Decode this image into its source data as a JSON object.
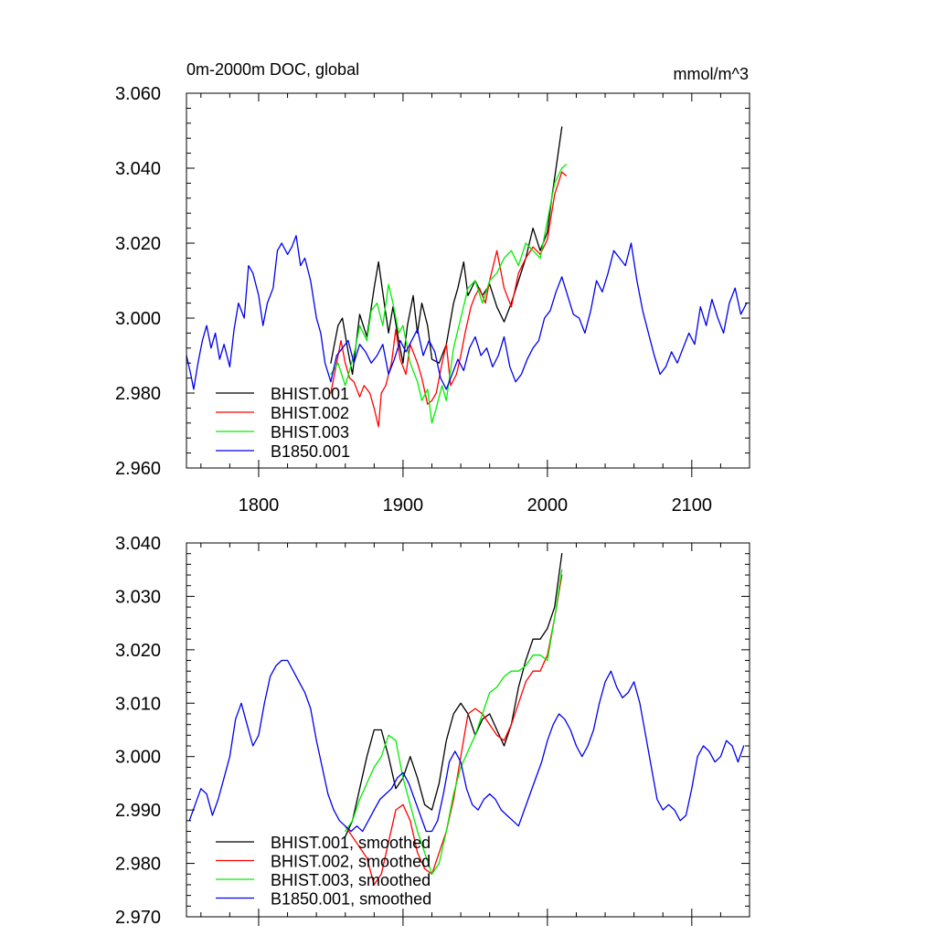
{
  "colors": {
    "BHIST.001": "#000000",
    "BHIST.002": "#ff0000",
    "BHIST.003": "#00ee00",
    "B1850.001": "#0000ee"
  },
  "chart_data": [
    {
      "type": "line",
      "title": "0m-2000m DOC, global",
      "units": "mmol/m^3",
      "xlabel": "",
      "ylabel": "",
      "xlim": [
        1750,
        2140
      ],
      "ylim": [
        2.96,
        3.06
      ],
      "xticks": [
        1800,
        1900,
        2000,
        2100
      ],
      "xtick_labels": [
        "1800",
        "1900",
        "2000",
        "2100"
      ],
      "yticks": [
        2.96,
        2.98,
        3.0,
        3.02,
        3.04,
        3.06
      ],
      "ytick_labels": [
        "2.960",
        "2.980",
        "3.000",
        "3.020",
        "3.040",
        "3.060"
      ],
      "legend_position": "lower-left",
      "grid": false,
      "series": [
        {
          "name": "BHIST.001",
          "x": [
            1850,
            1855,
            1858,
            1862,
            1865,
            1870,
            1875,
            1880,
            1883,
            1887,
            1890,
            1893,
            1897,
            1900,
            1903,
            1907,
            1910,
            1913,
            1917,
            1920,
            1925,
            1930,
            1935,
            1938,
            1942,
            1945,
            1950,
            1955,
            1960,
            1965,
            1970,
            1975,
            1980,
            1985,
            1990,
            1995,
            2000,
            2003,
            2006,
            2010
          ],
          "values": [
            2.988,
            2.998,
            3.0,
            2.991,
            2.985,
            3.001,
            2.995,
            3.008,
            3.015,
            3.004,
            2.996,
            3.003,
            2.994,
            2.988,
            2.998,
            3.006,
            2.996,
            3.004,
            2.998,
            2.989,
            2.988,
            2.993,
            3.004,
            3.008,
            3.015,
            3.006,
            3.01,
            3.006,
            3.009,
            3.003,
            2.999,
            3.004,
            3.01,
            3.016,
            3.024,
            3.018,
            3.023,
            3.032,
            3.04,
            3.051
          ]
        },
        {
          "name": "BHIST.002",
          "x": [
            1850,
            1853,
            1857,
            1860,
            1863,
            1866,
            1870,
            1873,
            1877,
            1880,
            1883,
            1885,
            1888,
            1892,
            1895,
            1898,
            1902,
            1905,
            1910,
            1913,
            1917,
            1920,
            1923,
            1927,
            1930,
            1933,
            1937,
            1940,
            1943,
            1947,
            1950,
            1953,
            1957,
            1960,
            1965,
            1970,
            1975,
            1980,
            1985,
            1990,
            1995,
            2000,
            2005,
            2010,
            2013
          ],
          "values": [
            2.98,
            2.986,
            2.994,
            2.988,
            2.984,
            2.983,
            2.979,
            2.982,
            2.98,
            2.976,
            2.971,
            2.98,
            2.982,
            2.988,
            2.997,
            2.989,
            2.985,
            2.993,
            2.988,
            2.984,
            2.977,
            2.978,
            2.98,
            2.988,
            2.993,
            2.982,
            2.985,
            2.99,
            2.996,
            3.003,
            3.006,
            3.008,
            3.004,
            3.01,
            3.018,
            3.008,
            3.003,
            3.012,
            3.016,
            3.019,
            3.017,
            3.021,
            3.033,
            3.039,
            3.038
          ]
        },
        {
          "name": "BHIST.003",
          "x": [
            1850,
            1855,
            1860,
            1863,
            1867,
            1870,
            1875,
            1878,
            1882,
            1886,
            1890,
            1893,
            1897,
            1900,
            1905,
            1910,
            1913,
            1917,
            1920,
            1923,
            1927,
            1930,
            1935,
            1940,
            1945,
            1950,
            1955,
            1960,
            1965,
            1970,
            1975,
            1980,
            1985,
            1990,
            1995,
            2000,
            2005,
            2010,
            2013
          ],
          "values": [
            2.985,
            2.988,
            2.982,
            2.986,
            2.992,
            2.998,
            2.994,
            3.002,
            3.004,
            2.998,
            3.009,
            3.004,
            2.996,
            2.998,
            2.988,
            2.983,
            2.978,
            2.981,
            2.972,
            2.976,
            2.982,
            2.978,
            2.992,
            3.0,
            3.008,
            3.01,
            3.004,
            3.01,
            3.012,
            3.016,
            3.018,
            3.014,
            3.02,
            3.018,
            3.016,
            3.026,
            3.036,
            3.04,
            3.041
          ]
        },
        {
          "name": "B1850.001",
          "x": [
            1750,
            1753,
            1755,
            1758,
            1761,
            1764,
            1767,
            1770,
            1773,
            1776,
            1780,
            1783,
            1786,
            1790,
            1793,
            1796,
            1800,
            1803,
            1806,
            1810,
            1813,
            1816,
            1820,
            1823,
            1826,
            1829,
            1832,
            1836,
            1840,
            1843,
            1846,
            1850,
            1854,
            1858,
            1862,
            1866,
            1870,
            1874,
            1878,
            1882,
            1886,
            1890,
            1894,
            1898,
            1902,
            1906,
            1910,
            1914,
            1918,
            1922,
            1926,
            1930,
            1934,
            1938,
            1942,
            1946,
            1950,
            1954,
            1958,
            1962,
            1966,
            1970,
            1974,
            1978,
            1982,
            1986,
            1990,
            1994,
            1998,
            2002,
            2006,
            2010,
            2014,
            2018,
            2022,
            2026,
            2030,
            2034,
            2038,
            2042,
            2046,
            2050,
            2054,
            2058,
            2062,
            2066,
            2070,
            2074,
            2078,
            2082,
            2086,
            2090,
            2094,
            2098,
            2102,
            2106,
            2110,
            2114,
            2118,
            2122,
            2126,
            2130,
            2134,
            2138
          ],
          "values": [
            2.99,
            2.985,
            2.981,
            2.988,
            2.994,
            2.998,
            2.992,
            2.996,
            2.989,
            2.993,
            2.987,
            2.997,
            3.004,
            3.0,
            3.014,
            3.012,
            3.006,
            2.998,
            3.004,
            3.008,
            3.018,
            3.02,
            3.017,
            3.019,
            3.022,
            3.014,
            3.016,
            3.01,
            3.0,
            2.996,
            2.988,
            2.983,
            2.99,
            2.992,
            2.994,
            2.988,
            2.993,
            2.991,
            2.988,
            2.99,
            2.993,
            2.985,
            2.989,
            2.994,
            2.991,
            2.994,
            2.997,
            2.99,
            2.994,
            2.991,
            2.984,
            2.981,
            2.985,
            2.989,
            2.986,
            2.992,
            2.995,
            2.99,
            2.992,
            2.987,
            2.99,
            2.995,
            2.987,
            2.983,
            2.985,
            2.989,
            2.992,
            2.994,
            3.0,
            3.002,
            3.007,
            3.011,
            3.006,
            3.001,
            3.0,
            2.996,
            3.002,
            3.01,
            3.007,
            3.012,
            3.018,
            3.016,
            3.014,
            3.02,
            3.01,
            3.002,
            2.996,
            2.99,
            2.985,
            2.987,
            2.991,
            2.988,
            2.992,
            2.996,
            2.993,
            3.003,
            2.998,
            3.005,
            3.0,
            2.996,
            3.004,
            3.008,
            3.001,
            3.004
          ]
        }
      ]
    },
    {
      "type": "line",
      "title": "",
      "xlabel": "",
      "ylabel": "",
      "xlim": [
        1750,
        2140
      ],
      "ylim": [
        2.97,
        3.04
      ],
      "xticks": [
        1800,
        1900,
        2000,
        2100
      ],
      "yticks": [
        2.97,
        2.98,
        2.99,
        3.0,
        3.01,
        3.02,
        3.03,
        3.04
      ],
      "ytick_labels": [
        "2.970",
        "2.980",
        "2.990",
        "3.000",
        "3.010",
        "3.020",
        "3.030",
        "3.040"
      ],
      "legend_position": "lower-left",
      "grid": false,
      "series": [
        {
          "name": "BHIST.001, smoothed",
          "x": [
            1860,
            1865,
            1870,
            1875,
            1880,
            1885,
            1890,
            1895,
            1900,
            1905,
            1910,
            1915,
            1920,
            1925,
            1930,
            1935,
            1940,
            1945,
            1950,
            1955,
            1960,
            1965,
            1970,
            1975,
            1980,
            1985,
            1990,
            1995,
            2000,
            2005,
            2010
          ],
          "values": [
            2.985,
            2.988,
            2.994,
            3.0,
            3.005,
            3.005,
            3.0,
            2.994,
            2.996,
            3.0,
            2.996,
            2.991,
            2.99,
            2.995,
            3.003,
            3.008,
            3.01,
            3.008,
            3.004,
            3.007,
            3.008,
            3.005,
            3.002,
            3.006,
            3.013,
            3.018,
            3.022,
            3.022,
            3.024,
            3.028,
            3.038
          ]
        },
        {
          "name": "BHIST.002, smoothed",
          "x": [
            1860,
            1865,
            1870,
            1875,
            1880,
            1885,
            1890,
            1895,
            1900,
            1905,
            1910,
            1915,
            1920,
            1925,
            1930,
            1935,
            1940,
            1945,
            1950,
            1955,
            1960,
            1965,
            1970,
            1975,
            1980,
            1985,
            1990,
            1995,
            2000,
            2005,
            2010
          ],
          "values": [
            2.987,
            2.985,
            2.983,
            2.981,
            2.976,
            2.978,
            2.984,
            2.99,
            2.991,
            2.988,
            2.982,
            2.979,
            2.978,
            2.982,
            2.986,
            2.992,
            3.0,
            3.008,
            3.009,
            3.008,
            3.006,
            3.004,
            3.003,
            3.006,
            3.01,
            3.014,
            3.016,
            3.016,
            3.019,
            3.026,
            3.034
          ]
        },
        {
          "name": "BHIST.003, smoothed",
          "x": [
            1860,
            1865,
            1870,
            1875,
            1880,
            1885,
            1890,
            1895,
            1900,
            1905,
            1910,
            1915,
            1920,
            1925,
            1930,
            1935,
            1940,
            1945,
            1950,
            1955,
            1960,
            1965,
            1970,
            1975,
            1980,
            1985,
            1990,
            1995,
            2000,
            2005,
            2010
          ],
          "values": [
            2.986,
            2.988,
            2.992,
            2.995,
            2.998,
            3.0,
            3.004,
            3.003,
            2.996,
            2.991,
            2.986,
            2.982,
            2.978,
            2.98,
            2.986,
            2.993,
            2.998,
            3.001,
            3.004,
            3.008,
            3.012,
            3.013,
            3.015,
            3.016,
            3.016,
            3.017,
            3.019,
            3.019,
            3.018,
            3.026,
            3.035
          ]
        },
        {
          "name": "B1850.001, smoothed",
          "x": [
            1752,
            1756,
            1760,
            1764,
            1768,
            1772,
            1776,
            1780,
            1784,
            1788,
            1792,
            1796,
            1800,
            1804,
            1808,
            1812,
            1816,
            1820,
            1824,
            1828,
            1832,
            1836,
            1840,
            1844,
            1848,
            1852,
            1856,
            1860,
            1864,
            1868,
            1872,
            1876,
            1880,
            1884,
            1888,
            1892,
            1896,
            1900,
            1904,
            1908,
            1912,
            1916,
            1920,
            1924,
            1928,
            1932,
            1936,
            1940,
            1944,
            1948,
            1952,
            1956,
            1960,
            1964,
            1968,
            1972,
            1976,
            1980,
            1984,
            1988,
            1992,
            1996,
            2000,
            2004,
            2008,
            2012,
            2016,
            2020,
            2024,
            2028,
            2032,
            2036,
            2040,
            2044,
            2048,
            2052,
            2056,
            2060,
            2064,
            2068,
            2072,
            2076,
            2080,
            2084,
            2088,
            2092,
            2096,
            2100,
            2104,
            2108,
            2112,
            2116,
            2120,
            2124,
            2128,
            2132,
            2136
          ],
          "values": [
            2.988,
            2.991,
            2.994,
            2.993,
            2.989,
            2.992,
            2.996,
            3.0,
            3.007,
            3.01,
            3.006,
            3.002,
            3.004,
            3.01,
            3.015,
            3.017,
            3.018,
            3.018,
            3.016,
            3.014,
            3.012,
            3.009,
            3.003,
            2.998,
            2.993,
            2.99,
            2.988,
            2.987,
            2.986,
            2.987,
            2.986,
            2.988,
            2.99,
            2.992,
            2.993,
            2.994,
            2.996,
            2.997,
            2.995,
            2.992,
            2.989,
            2.986,
            2.986,
            2.988,
            2.993,
            2.999,
            3.001,
            2.999,
            2.994,
            2.991,
            2.99,
            2.992,
            2.993,
            2.992,
            2.99,
            2.989,
            2.988,
            2.987,
            2.99,
            2.993,
            2.996,
            2.999,
            3.003,
            3.006,
            3.008,
            3.007,
            3.005,
            3.002,
            3.0,
            3.002,
            3.005,
            3.01,
            3.014,
            3.016,
            3.013,
            3.011,
            3.012,
            3.014,
            3.01,
            3.004,
            2.998,
            2.992,
            2.99,
            2.991,
            2.99,
            2.988,
            2.989,
            2.994,
            3.0,
            3.002,
            3.001,
            2.999,
            3.0,
            3.003,
            3.002,
            2.999,
            3.002
          ]
        }
      ]
    }
  ]
}
